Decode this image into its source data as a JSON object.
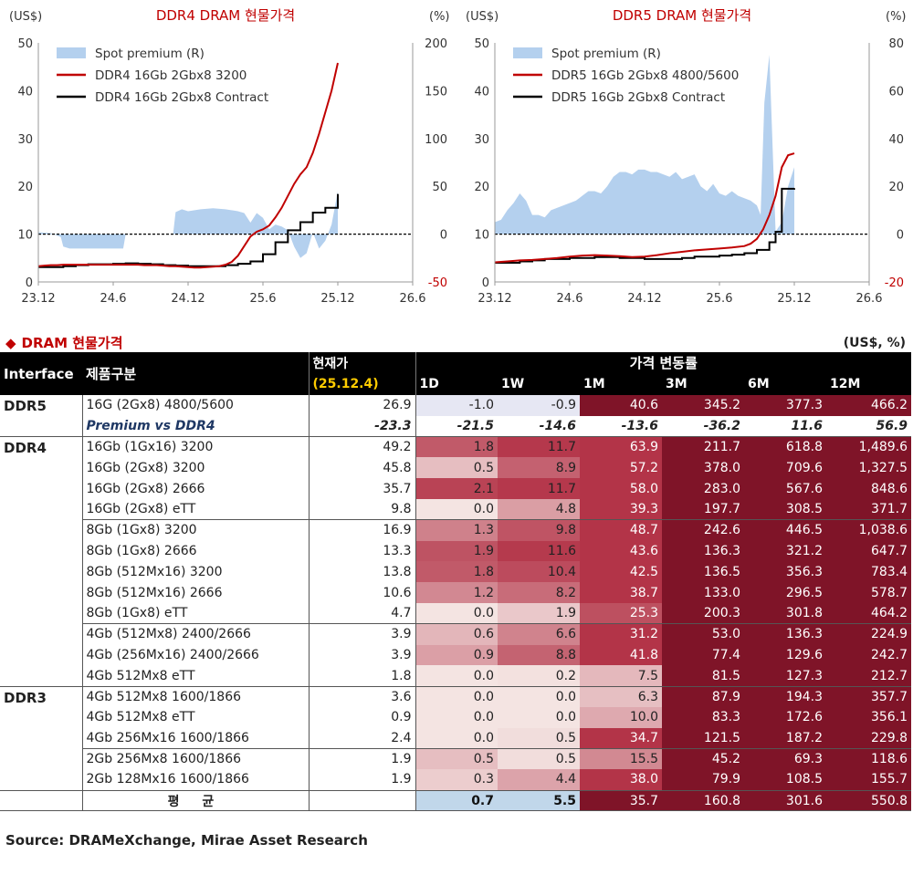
{
  "charts": [
    {
      "type": "line",
      "title": "DDR4 DRAM 현물가격",
      "left_unit": "(US$)",
      "right_unit": "(%)",
      "ylim": [
        0,
        50
      ],
      "yticks": [
        "0",
        "10",
        "20",
        "30",
        "40",
        "50"
      ],
      "y2lim": [
        -50,
        200
      ],
      "y2ticks": [
        "-50",
        "0",
        "50",
        "100",
        "150",
        "200"
      ],
      "xticks": [
        "23.12",
        "24.6",
        "24.12",
        "25.6",
        "25.12",
        "26.6"
      ],
      "reference_value": 10,
      "legend": {
        "position": "top-left",
        "entries": [
          "Spot premium (R)",
          "DDR4 16Gb 2Gbx8 3200",
          "DDR4 16Gb 2Gbx8 Contract"
        ]
      },
      "colors": {
        "premium": "#b4d0ee",
        "spot": "#c00000",
        "contract": "#000000"
      },
      "chart_data": {
        "x_months": [
          0,
          0.5,
          1,
          1.5,
          2,
          2.5,
          3,
          3.5,
          4,
          4.5,
          5,
          5.5,
          6,
          6.5,
          7,
          7.5,
          8,
          8.5,
          9,
          9.5,
          10,
          10.5,
          11,
          11.5,
          12,
          12.5,
          13,
          13.5,
          14,
          14.5,
          15,
          15.5,
          16,
          16.5,
          17,
          17.5,
          18,
          18.5,
          19,
          19.5,
          20,
          20.5,
          21,
          21.5,
          22,
          22.5,
          23,
          23.5,
          24
        ],
        "spot_price": [
          3.3,
          3.4,
          3.5,
          3.5,
          3.6,
          3.6,
          3.6,
          3.6,
          3.6,
          3.6,
          3.6,
          3.6,
          3.6,
          3.6,
          3.6,
          3.6,
          3.6,
          3.5,
          3.5,
          3.5,
          3.4,
          3.3,
          3.3,
          3.2,
          3.1,
          3.0,
          3.0,
          3.1,
          3.2,
          3.3,
          3.6,
          4.2,
          5.5,
          7.5,
          9.5,
          10.5,
          11.0,
          11.8,
          13.5,
          15.5,
          18.0,
          20.5,
          22.5,
          24.0,
          27.0,
          31.0,
          35.5,
          40.0,
          45.8
        ],
        "contract_x": [
          0,
          2,
          3,
          4,
          6,
          7,
          8,
          9,
          10,
          11,
          12,
          14,
          15,
          16,
          17,
          18,
          19,
          20,
          21,
          22,
          23,
          24
        ],
        "contract_price": [
          3.1,
          3.3,
          3.5,
          3.7,
          3.8,
          3.9,
          3.8,
          3.7,
          3.5,
          3.4,
          3.3,
          3.3,
          3.5,
          3.8,
          4.3,
          5.8,
          8.3,
          10.8,
          12.5,
          14.5,
          15.5,
          18.4
        ],
        "premium_x": [
          0,
          1,
          1.8,
          2,
          2.5,
          3,
          4,
          5,
          6,
          6.8,
          7,
          7.5,
          8,
          9,
          10,
          10.5,
          10.8,
          11,
          11.5,
          12,
          13,
          14,
          15,
          16,
          16.5,
          17,
          17.5,
          18,
          18.5,
          19,
          19.5,
          20,
          20.5,
          21,
          21.5,
          22,
          22.5,
          23,
          23.5,
          24
        ],
        "premium": [
          2,
          1,
          -3,
          -13,
          -15,
          -15,
          -15,
          -15,
          -15,
          -15,
          0,
          0,
          0,
          0,
          0,
          0,
          0,
          23,
          26,
          24,
          26,
          27,
          26,
          24,
          22,
          12,
          22,
          17,
          5,
          10,
          8,
          4,
          -13,
          -25,
          -20,
          2,
          -15,
          -7,
          10,
          45
        ],
        "premium_range": [
          7,
          24
        ]
      }
    },
    {
      "type": "line",
      "title": "DDR5 DRAM 현물가격",
      "left_unit": "(US$)",
      "right_unit": "(%)",
      "ylim": [
        0,
        50
      ],
      "yticks": [
        "0",
        "10",
        "20",
        "30",
        "40",
        "50"
      ],
      "y2lim": [
        -20,
        80
      ],
      "y2ticks": [
        "-20",
        "0",
        "20",
        "40",
        "60",
        "80"
      ],
      "xticks": [
        "23.12",
        "24.6",
        "24.12",
        "25.6",
        "25.12",
        "26.6"
      ],
      "reference_value": 10,
      "legend": {
        "position": "top-left",
        "entries": [
          "Spot premium (R)",
          "DDR5 16Gb 2Gbx8 4800/5600",
          "DDR5 16Gb 2Gbx8 Contract"
        ]
      },
      "colors": {
        "premium": "#b4d0ee",
        "spot": "#c00000",
        "contract": "#000000"
      },
      "chart_data": {
        "x_months": [
          0,
          1,
          2,
          3,
          4,
          5,
          6,
          7,
          8,
          9,
          10,
          11,
          12,
          13,
          14,
          15,
          16,
          17,
          18,
          19,
          20,
          20.5,
          21,
          21.5,
          22,
          22.5,
          23,
          23.5,
          24
        ],
        "spot_price": [
          4.1,
          4.3,
          4.5,
          4.6,
          4.8,
          5.0,
          5.3,
          5.5,
          5.6,
          5.5,
          5.4,
          5.2,
          5.3,
          5.6,
          6.0,
          6.3,
          6.6,
          6.8,
          7.0,
          7.2,
          7.5,
          8.0,
          9.0,
          11.0,
          14.0,
          18.0,
          24.0,
          26.5,
          26.9
        ],
        "contract_x": [
          0,
          2,
          3,
          4,
          6,
          8,
          10,
          12,
          14,
          15,
          16,
          18,
          19,
          20,
          21,
          22,
          22.5,
          23,
          24
        ],
        "contract_price": [
          4.0,
          4.3,
          4.5,
          4.8,
          5.0,
          5.2,
          5.0,
          4.8,
          4.8,
          5.0,
          5.3,
          5.5,
          5.7,
          6.0,
          6.7,
          8.3,
          10.5,
          19.5,
          19.6
        ],
        "premium_x": [
          0,
          0.5,
          1,
          1.5,
          2,
          2.5,
          3,
          3.5,
          4,
          4.5,
          5,
          5.5,
          6,
          6.5,
          7,
          7.5,
          8,
          8.5,
          9,
          9.5,
          10,
          10.5,
          11,
          11.5,
          12,
          12.5,
          13,
          13.5,
          14,
          14.5,
          15,
          15.5,
          16,
          16.5,
          17,
          17.5,
          18,
          18.5,
          19,
          19.5,
          20,
          20.5,
          21,
          21.3,
          21.6,
          22,
          22.5,
          23,
          23.5,
          24
        ],
        "premium": [
          5,
          6,
          10,
          13,
          17,
          14,
          8,
          8,
          7,
          10,
          11,
          12,
          13,
          14,
          16,
          18,
          18,
          17,
          20,
          24,
          26,
          26,
          25,
          27,
          27,
          26,
          26,
          25,
          24,
          26,
          23,
          24,
          25,
          20,
          18,
          21,
          17,
          16,
          18,
          16,
          15,
          14,
          12,
          8,
          55,
          75,
          1,
          5,
          20,
          28
        ],
        "premium_range": [
          0,
          24
        ]
      }
    }
  ],
  "table": {
    "title": "DRAM 현물가격",
    "unit": "(US$, %)",
    "headers": {
      "interface": "Interface",
      "product": "제품구분",
      "price_line1": "현재가",
      "price_line2": "(25.12.4)",
      "change": "가격 변동률",
      "cols": [
        "1D",
        "1W",
        "1M",
        "3M",
        "6M",
        "12M"
      ]
    },
    "groups": [
      {
        "name": "DDR5",
        "rows": [
          {
            "product": "16G (2Gx8) 4800/5600",
            "price": "26.9",
            "values": [
              "-1.0",
              "-0.9",
              "40.6",
              "345.2",
              "377.3",
              "466.2"
            ]
          },
          {
            "product": "Premium vs DDR4",
            "price": "-23.3",
            "values": [
              "-21.5",
              "-14.6",
              "-13.6",
              "-36.2",
              "11.6",
              "56.9"
            ],
            "premium": true
          }
        ]
      },
      {
        "name": "DDR4",
        "rows": [
          {
            "product": "16Gb (1Gx16) 3200",
            "price": "49.2",
            "values": [
              "1.8",
              "11.7",
              "63.9",
              "211.7",
              "618.8",
              "1,489.6"
            ]
          },
          {
            "product": "16Gb (2Gx8) 3200",
            "price": "45.8",
            "values": [
              "0.5",
              "8.9",
              "57.2",
              "378.0",
              "709.6",
              "1,327.5"
            ]
          },
          {
            "product": "16Gb (2Gx8) 2666",
            "price": "35.7",
            "values": [
              "2.1",
              "11.7",
              "58.0",
              "283.0",
              "567.6",
              "848.6"
            ]
          },
          {
            "product": "16Gb (2Gx8) eTT",
            "price": "9.8",
            "values": [
              "0.0",
              "4.8",
              "39.3",
              "197.7",
              "308.5",
              "371.7"
            ],
            "group_end": true
          },
          {
            "product": "8Gb (1Gx8) 3200",
            "price": "16.9",
            "values": [
              "1.3",
              "9.8",
              "48.7",
              "242.6",
              "446.5",
              "1,038.6"
            ]
          },
          {
            "product": "8Gb (1Gx8) 2666",
            "price": "13.3",
            "values": [
              "1.9",
              "11.6",
              "43.6",
              "136.3",
              "321.2",
              "647.7"
            ]
          },
          {
            "product": "8Gb (512Mx16) 3200",
            "price": "13.8",
            "values": [
              "1.8",
              "10.4",
              "42.5",
              "136.5",
              "356.3",
              "783.4"
            ]
          },
          {
            "product": "8Gb (512Mx16) 2666",
            "price": "10.6",
            "values": [
              "1.2",
              "8.2",
              "38.7",
              "133.0",
              "296.5",
              "578.7"
            ]
          },
          {
            "product": "8Gb (1Gx8) eTT",
            "price": "4.7",
            "values": [
              "0.0",
              "1.9",
              "25.3",
              "200.3",
              "301.8",
              "464.2"
            ],
            "group_end": true
          },
          {
            "product": "4Gb (512Mx8) 2400/2666",
            "price": "3.9",
            "values": [
              "0.6",
              "6.6",
              "31.2",
              "53.0",
              "136.3",
              "224.9"
            ]
          },
          {
            "product": "4Gb (256Mx16) 2400/2666",
            "price": "3.9",
            "values": [
              "0.9",
              "8.8",
              "41.8",
              "77.4",
              "129.6",
              "242.7"
            ]
          },
          {
            "product": "4Gb 512Mx8 eTT",
            "price": "1.8",
            "values": [
              "0.0",
              "0.2",
              "7.5",
              "81.5",
              "127.3",
              "212.7"
            ]
          }
        ]
      },
      {
        "name": "DDR3",
        "rows": [
          {
            "product": "4Gb 512Mx8 1600/1866",
            "price": "3.6",
            "values": [
              "0.0",
              "0.0",
              "6.3",
              "87.9",
              "194.3",
              "357.7"
            ]
          },
          {
            "product": "4Gb 512Mx8 eTT",
            "price": "0.9",
            "values": [
              "0.0",
              "0.0",
              "10.0",
              "83.3",
              "172.6",
              "356.1"
            ]
          },
          {
            "product": "4Gb 256Mx16 1600/1866",
            "price": "2.4",
            "values": [
              "0.0",
              "0.5",
              "34.7",
              "121.5",
              "187.2",
              "229.8"
            ],
            "group_end": true
          },
          {
            "product": "2Gb 256Mx8 1600/1866",
            "price": "1.9",
            "values": [
              "0.5",
              "0.5",
              "15.5",
              "45.2",
              "69.3",
              "118.6"
            ]
          },
          {
            "product": "2Gb 128Mx16 1600/1866",
            "price": "1.9",
            "values": [
              "0.3",
              "4.4",
              "38.0",
              "79.9",
              "108.5",
              "155.7"
            ]
          }
        ]
      }
    ],
    "average": {
      "label": "평 균",
      "values": [
        "0.7",
        "5.5",
        "35.7",
        "160.8",
        "301.6",
        "550.8"
      ]
    }
  },
  "source": "Source: DRAMeXchange, Mirae Asset Research"
}
